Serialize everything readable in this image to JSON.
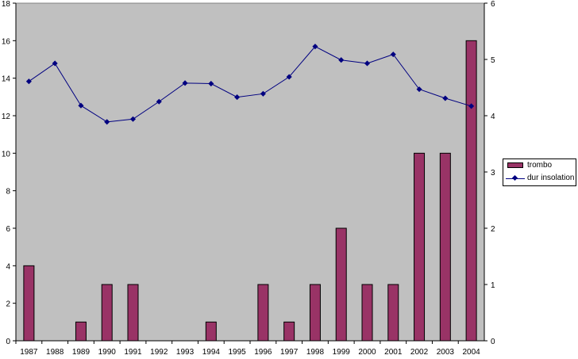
{
  "chart_data": {
    "type": "bar+line",
    "categories": [
      "1987",
      "1988",
      "1989",
      "1990",
      "1991",
      "1992",
      "1993",
      "1994",
      "1995",
      "1996",
      "1997",
      "1998",
      "1999",
      "2000",
      "2001",
      "2002",
      "2003",
      "2004"
    ],
    "series": [
      {
        "name": "trombo",
        "type": "bar",
        "axis": "left",
        "color": "#993366",
        "values": [
          4,
          0,
          1,
          3,
          3,
          0,
          0,
          1,
          0,
          3,
          1,
          3,
          6,
          3,
          3,
          10,
          10,
          16
        ]
      },
      {
        "name": "dur insolation",
        "type": "line",
        "axis": "right",
        "color": "#000080",
        "values": [
          4.61,
          4.93,
          4.18,
          3.89,
          3.94,
          4.25,
          4.58,
          4.57,
          4.33,
          4.39,
          4.69,
          5.23,
          4.99,
          4.93,
          5.09,
          4.47,
          4.31,
          4.17
        ]
      }
    ],
    "ylim": [
      0,
      18
    ],
    "y_ticks": [
      "0",
      "2",
      "4",
      "6",
      "8",
      "10",
      "12",
      "14",
      "16",
      "18"
    ],
    "y2lim": [
      0,
      6
    ],
    "y2_ticks": [
      "0",
      "1",
      "2",
      "3",
      "4",
      "5",
      "6"
    ],
    "plot_background": "#c0c0c0",
    "grid": false,
    "legend": "right"
  }
}
